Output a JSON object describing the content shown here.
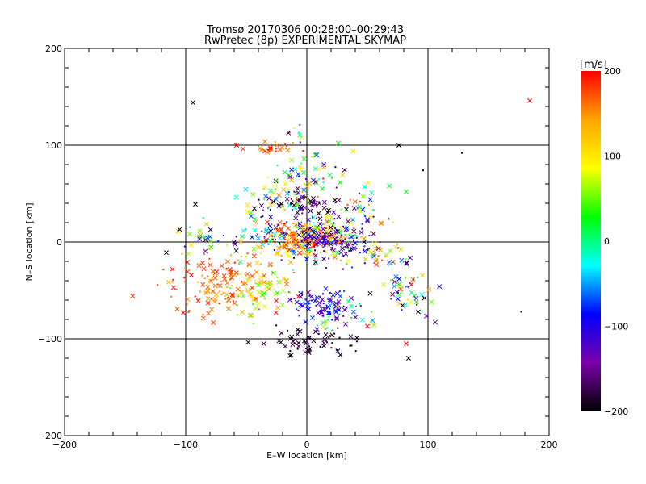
{
  "chart_data": {
    "type": "scatter",
    "title": "Tromsø 20170306 00:28:00–00:29:43",
    "subtitle": "RwPretec (8p) EXPERIMENTAL SKYMAP",
    "xlabel": "E–W location [km]",
    "ylabel": "N–S location [km]",
    "xlim": [
      -200,
      200
    ],
    "ylim": [
      -200,
      200
    ],
    "x_ticks": [
      -200,
      -100,
      0,
      100,
      200
    ],
    "y_ticks": [
      -200,
      -100,
      0,
      100,
      200
    ],
    "x_tick_labels": [
      "−200",
      "−100",
      "0",
      "100",
      "200"
    ],
    "y_tick_labels": [
      "−200",
      "−100",
      "0",
      "100",
      "200"
    ],
    "grid": true,
    "colorbar": {
      "label": "[m/s]",
      "range": [
        -200,
        200
      ],
      "ticks": [
        200,
        100,
        0,
        -100,
        -200
      ],
      "tick_labels": [
        "200",
        "100",
        "0",
        "−100",
        "−200"
      ],
      "stops": [
        "#000000",
        "#7a00a8",
        "#0000ff",
        "#00ffff",
        "#00ff00",
        "#ffff00",
        "#ffa500",
        "#ff0000"
      ]
    },
    "seed": 20170306,
    "isolated_points": [
      {
        "x": -94,
        "y": 144,
        "v": -200,
        "m": "x"
      },
      {
        "x": 184,
        "y": 146,
        "v": 200,
        "m": "x"
      },
      {
        "x": 76,
        "y": 100,
        "v": -200,
        "m": "x"
      },
      {
        "x": 128,
        "y": 92,
        "v": -200,
        "m": "."
      },
      {
        "x": 26,
        "y": 102,
        "v": 30,
        "m": "x"
      },
      {
        "x": -92,
        "y": 39,
        "v": -200,
        "m": "x"
      },
      {
        "x": -105,
        "y": 13,
        "v": -200,
        "m": "x"
      },
      {
        "x": -116,
        "y": -11,
        "v": -200,
        "m": "x"
      },
      {
        "x": -110,
        "y": -47,
        "v": 200,
        "m": "x"
      },
      {
        "x": -102,
        "y": -73,
        "v": 200,
        "m": "x"
      },
      {
        "x": 82,
        "y": -105,
        "v": 200,
        "m": "x"
      },
      {
        "x": 84,
        "y": -120,
        "v": -200,
        "m": "x"
      },
      {
        "x": 97,
        "y": -58,
        "v": -200,
        "m": "x"
      },
      {
        "x": 92,
        "y": -72,
        "v": -200,
        "m": "x"
      },
      {
        "x": 96,
        "y": 74,
        "v": -200,
        "m": "."
      },
      {
        "x": 177,
        "y": -72,
        "v": -200,
        "m": "."
      },
      {
        "x": 50,
        "y": -87,
        "v": 200,
        "m": "x"
      },
      {
        "x": 37,
        "y": -107,
        "v": -200,
        "m": "."
      },
      {
        "x": 82,
        "y": 52,
        "v": 20,
        "m": "x"
      },
      {
        "x": 68,
        "y": 58,
        "v": 20,
        "m": "x"
      },
      {
        "x": -58,
        "y": 100,
        "v": 200,
        "m": "x"
      }
    ],
    "clusters": [
      {
        "cx": -32,
        "cy": 97,
        "sx": 9,
        "sy": 3,
        "n": 30,
        "vmin": 140,
        "vmax": 200
      },
      {
        "cx": -8,
        "cy": 116,
        "sx": 4,
        "sy": 4,
        "n": 8,
        "vmin": -200,
        "vmax": 200
      },
      {
        "cx": 0,
        "cy": 70,
        "sx": 14,
        "sy": 10,
        "n": 50,
        "vmin": -200,
        "vmax": 200
      },
      {
        "cx": -25,
        "cy": 45,
        "sx": 14,
        "sy": 8,
        "n": 50,
        "vmin": -200,
        "vmax": 200
      },
      {
        "cx": 0,
        "cy": 38,
        "sx": 14,
        "sy": 5,
        "n": 45,
        "vmin": -200,
        "vmax": -140
      },
      {
        "cx": 45,
        "cy": 33,
        "sx": 14,
        "sy": 12,
        "n": 30,
        "vmin": -200,
        "vmax": 200
      },
      {
        "cx": -5,
        "cy": 5,
        "sx": 30,
        "sy": 12,
        "n": 220,
        "vmin": -200,
        "vmax": 200
      },
      {
        "cx": -3,
        "cy": 2,
        "sx": 16,
        "sy": 9,
        "n": 110,
        "vmin": 120,
        "vmax": 200
      },
      {
        "cx": 20,
        "cy": 0,
        "sx": 16,
        "sy": 10,
        "n": 90,
        "vmin": -200,
        "vmax": -80
      },
      {
        "cx": 55,
        "cy": -15,
        "sx": 16,
        "sy": 10,
        "n": 40,
        "vmin": -200,
        "vmax": 200
      },
      {
        "cx": -70,
        "cy": -45,
        "sx": 24,
        "sy": 16,
        "n": 150,
        "vmin": 130,
        "vmax": 200
      },
      {
        "cx": -40,
        "cy": -50,
        "sx": 12,
        "sy": 12,
        "n": 50,
        "vmin": 30,
        "vmax": 120
      },
      {
        "cx": 15,
        "cy": -65,
        "sx": 12,
        "sy": 10,
        "n": 90,
        "vmin": -150,
        "vmax": -60
      },
      {
        "cx": 80,
        "cy": -50,
        "sx": 12,
        "sy": 14,
        "n": 45,
        "vmin": -200,
        "vmax": 200
      },
      {
        "cx": 0,
        "cy": -100,
        "sx": 18,
        "sy": 8,
        "n": 60,
        "vmin": -200,
        "vmax": -170
      },
      {
        "cx": 30,
        "cy": -80,
        "sx": 14,
        "sy": 8,
        "n": 25,
        "vmin": -60,
        "vmax": 120
      },
      {
        "cx": -85,
        "cy": 0,
        "sx": 12,
        "sy": 10,
        "n": 25,
        "vmin": -200,
        "vmax": 200
      }
    ]
  }
}
